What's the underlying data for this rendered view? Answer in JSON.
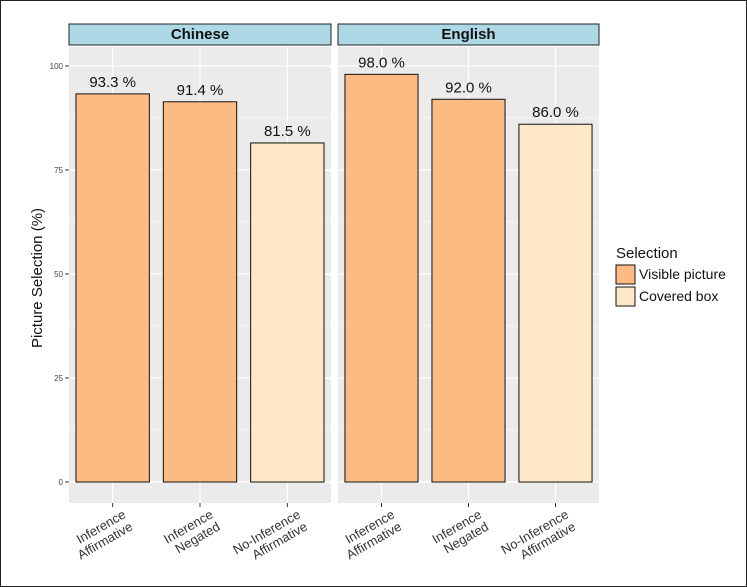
{
  "chart_data": {
    "type": "bar",
    "title": "",
    "ylabel": "Picture Selection (%)",
    "xlabel": "",
    "ylim": [
      0,
      100
    ],
    "yticks": [
      0,
      25,
      50,
      75,
      100
    ],
    "categories": [
      [
        "Inference",
        "Affirmative"
      ],
      [
        "Inference",
        "Negated"
      ],
      [
        "No-Inference",
        "Affirmative"
      ]
    ],
    "panels": [
      {
        "name": "Chinese",
        "values": [
          93.3,
          91.4,
          81.5
        ],
        "labels": [
          "93.3 %",
          "91.4 %",
          "81.5 %"
        ],
        "selection": [
          "Visible picture",
          "Visible picture",
          "Covered box"
        ]
      },
      {
        "name": "English",
        "values": [
          98.0,
          92.0,
          86.0
        ],
        "labels": [
          "98.0 %",
          "92.0 %",
          "86.0 %"
        ],
        "selection": [
          "Visible picture",
          "Visible picture",
          "Covered box"
        ]
      }
    ],
    "legend": {
      "title": "Selection",
      "placement": "right",
      "items": [
        {
          "name": "Visible picture",
          "color": "#FDBB84"
        },
        {
          "name": "Covered box",
          "color": "#FEE8C8"
        }
      ]
    },
    "grid": true,
    "panel_background": "#EBEBEB",
    "strip_color": "#ADD8E6",
    "grid_color": "#FFFFFF"
  }
}
